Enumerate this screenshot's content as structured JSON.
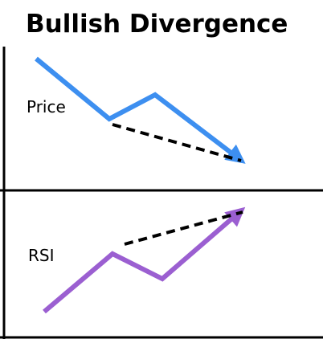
{
  "title": "Bullish Divergence",
  "panels": [
    {
      "label": "Price"
    },
    {
      "label": "RSI"
    }
  ]
}
